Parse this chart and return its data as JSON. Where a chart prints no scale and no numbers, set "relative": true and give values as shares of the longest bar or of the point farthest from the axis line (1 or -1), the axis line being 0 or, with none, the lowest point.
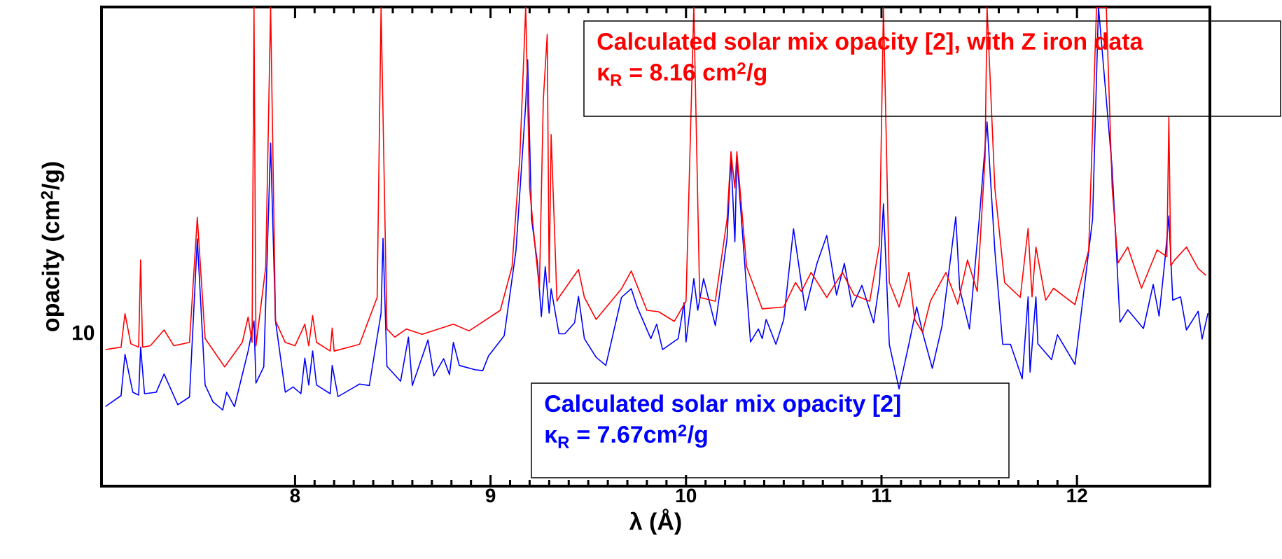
{
  "chart_data": {
    "type": "line",
    "xlabel": "λ (Å)",
    "ylabel": "opacity (cm$^{2}$/g)",
    "relative": true,
    "xlim": [
      7.01,
      12.68
    ],
    "xticks": [
      8,
      9,
      10,
      11,
      12
    ],
    "marker": "none",
    "line_style": "solid",
    "annotations": [
      "κ$_{R}$ = 8.16 cm$^{2}$/g",
      "κ$_{R}$ = 7.67cm$^{2}$/g",
      "10"
    ],
    "series": [
      {
        "name": "Calculated solar mix opacity [2], with Z iron data",
        "color": "#ff0000",
        "x": [
          7.03,
          7.11,
          7.13,
          7.16,
          7.2,
          7.21,
          7.22,
          7.26,
          7.33,
          7.38,
          7.46,
          7.5,
          7.54,
          7.64,
          7.73,
          7.76,
          7.78,
          7.79,
          7.8,
          7.85,
          7.875,
          7.9,
          7.95,
          8.0,
          8.05,
          8.07,
          8.09,
          8.11,
          8.18,
          8.19,
          8.2,
          8.33,
          8.42,
          8.44,
          8.47,
          8.51,
          8.57,
          8.65,
          8.81,
          8.89,
          9.05,
          9.11,
          9.15,
          9.18,
          9.2,
          9.23,
          9.25,
          9.27,
          9.29,
          9.3,
          9.31,
          9.34,
          9.35,
          9.45,
          9.48,
          9.54,
          9.67,
          9.72,
          9.8,
          9.86,
          9.94,
          10.0,
          10.04,
          10.07,
          10.15,
          10.21,
          10.23,
          10.25,
          10.26,
          10.31,
          10.39,
          10.5,
          10.56,
          10.59,
          10.64,
          10.72,
          10.8,
          10.86,
          10.94,
          10.99,
          11.01,
          11.04,
          11.09,
          11.14,
          11.17,
          11.21,
          11.25,
          11.33,
          11.39,
          11.44,
          11.49,
          11.53,
          11.54,
          11.58,
          11.63,
          11.71,
          11.75,
          11.77,
          11.79,
          11.84,
          11.88,
          11.99,
          12.06,
          12.1,
          12.15,
          12.18,
          12.21,
          12.26,
          12.33,
          12.41,
          12.46,
          12.47,
          12.48,
          12.5,
          12.56,
          12.62,
          12.66
        ],
        "values": [
          0.285,
          0.29,
          0.36,
          0.297,
          0.29,
          0.472,
          0.29,
          0.293,
          0.326,
          0.293,
          0.3,
          0.561,
          0.308,
          0.249,
          0.3,
          0.353,
          0.3,
          1,
          0.293,
          0.457,
          1,
          0.345,
          0.3,
          0.293,
          0.338,
          0.293,
          0.356,
          0.3,
          0.282,
          0.33,
          0.282,
          0.296,
          0.394,
          1,
          0.328,
          0.311,
          0.328,
          0.317,
          0.338,
          0.324,
          0.367,
          0.458,
          0.687,
          1,
          0.622,
          0.491,
          0.412,
          0.806,
          0.943,
          0.425,
          0.734,
          0.386,
          0.394,
          0.452,
          0.394,
          0.348,
          0.412,
          0.449,
          0.367,
          0.364,
          0.344,
          0.386,
          1,
          0.394,
          0.386,
          0.557,
          0.698,
          0.622,
          0.698,
          0.458,
          0.37,
          0.374,
          0.425,
          0.406,
          0.446,
          0.394,
          0.446,
          0.399,
          0.386,
          0.505,
          1,
          0.425,
          0.374,
          0.446,
          0.348,
          0.321,
          0.386,
          0.446,
          0.38,
          0.472,
          0.406,
          0.687,
          1,
          0.622,
          0.425,
          0.394,
          0.538,
          0.395,
          0.499,
          0.388,
          0.413,
          0.379,
          0.493,
          1,
          1,
          0.623,
          0.466,
          0.499,
          0.413,
          0.493,
          0.479,
          0.77,
          0.46,
          0.472,
          0.499,
          0.454,
          0.44
        ]
      },
      {
        "name": "Calculated solar mix opacity [2]",
        "color": "#0000ff",
        "x": [
          7.03,
          7.11,
          7.13,
          7.17,
          7.2,
          7.21,
          7.23,
          7.29,
          7.33,
          7.4,
          7.46,
          7.5,
          7.54,
          7.58,
          7.63,
          7.65,
          7.69,
          7.76,
          7.79,
          7.8,
          7.84,
          7.875,
          7.9,
          7.95,
          7.99,
          8.03,
          8.05,
          8.07,
          8.09,
          8.11,
          8.18,
          8.19,
          8.22,
          8.33,
          8.38,
          8.44,
          8.45,
          8.47,
          8.54,
          8.58,
          8.6,
          8.68,
          8.71,
          8.76,
          8.79,
          8.81,
          8.84,
          8.92,
          8.96,
          8.99,
          9.07,
          9.13,
          9.18,
          9.19,
          9.21,
          9.24,
          9.26,
          9.28,
          9.3,
          9.31,
          9.35,
          9.38,
          9.43,
          9.45,
          9.48,
          9.54,
          9.59,
          9.67,
          9.72,
          9.75,
          9.82,
          9.85,
          9.88,
          9.96,
          9.99,
          10.0,
          10.04,
          10.06,
          10.09,
          10.15,
          10.21,
          10.23,
          10.25,
          10.26,
          10.33,
          10.37,
          10.39,
          10.41,
          10.46,
          10.5,
          10.55,
          10.61,
          10.67,
          10.72,
          10.77,
          10.81,
          10.85,
          10.9,
          10.96,
          10.99,
          11.01,
          11.04,
          11.09,
          11.14,
          11.18,
          11.21,
          11.26,
          11.31,
          11.38,
          11.4,
          11.45,
          11.5,
          11.54,
          11.58,
          11.62,
          11.66,
          11.72,
          11.75,
          11.76,
          11.79,
          11.8,
          11.87,
          11.9,
          11.99,
          12.08,
          12.11,
          12.18,
          12.22,
          12.26,
          12.34,
          12.39,
          12.42,
          12.45,
          12.47,
          12.49,
          12.53,
          12.56,
          12.62,
          12.64,
          12.67
        ],
        "values": [
          0.166,
          0.189,
          0.275,
          0.196,
          0.19,
          0.29,
          0.193,
          0.196,
          0.234,
          0.17,
          0.186,
          0.516,
          0.211,
          0.176,
          0.159,
          0.196,
          0.166,
          0.282,
          0.345,
          0.215,
          0.249,
          0.716,
          0.345,
          0.196,
          0.207,
          0.193,
          0.267,
          0.211,
          0.282,
          0.211,
          0.193,
          0.252,
          0.187,
          0.213,
          0.21,
          0.361,
          0.517,
          0.25,
          0.219,
          0.311,
          0.21,
          0.305,
          0.23,
          0.266,
          0.233,
          0.3,
          0.252,
          0.243,
          0.241,
          0.272,
          0.314,
          0.491,
          0.798,
          0.89,
          0.557,
          0.465,
          0.354,
          0.458,
          0.361,
          0.412,
          0.318,
          0.318,
          0.341,
          0.396,
          0.308,
          0.269,
          0.252,
          0.394,
          0.412,
          0.374,
          0.308,
          0.338,
          0.285,
          0.308,
          0.383,
          0.301,
          0.433,
          0.367,
          0.433,
          0.335,
          0.517,
          0.687,
          0.51,
          0.687,
          0.301,
          0.328,
          0.308,
          0.348,
          0.296,
          0.348,
          0.537,
          0.367,
          0.465,
          0.523,
          0.399,
          0.465,
          0.374,
          0.419,
          0.341,
          0.425,
          0.589,
          0.296,
          0.203,
          0.296,
          0.374,
          0.321,
          0.246,
          0.335,
          0.562,
          0.412,
          0.328,
          0.557,
          0.76,
          0.491,
          0.296,
          0.296,
          0.224,
          0.395,
          0.238,
          0.395,
          0.297,
          0.264,
          0.316,
          0.254,
          0.558,
          1,
          0.663,
          0.342,
          0.368,
          0.329,
          0.421,
          0.355,
          0.472,
          0.564,
          0.388,
          0.395,
          0.326,
          0.365,
          0.307,
          0.361
        ]
      }
    ]
  }
}
